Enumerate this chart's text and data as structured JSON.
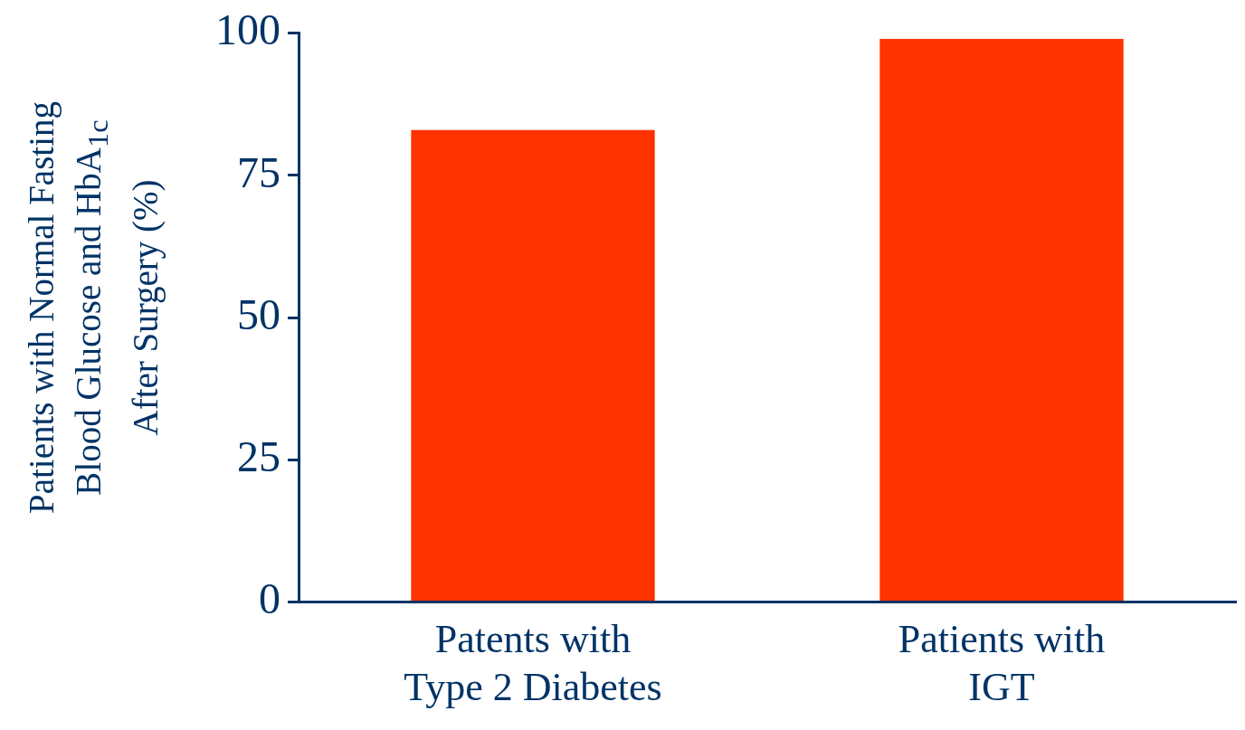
{
  "chart_data": {
    "type": "bar",
    "ylabel": "Patients with Normal Fasting\nBlood Glucose and HbA$_{1c}$\nAfter Surgery (%)",
    "categories": [
      "Patents with\nType 2 Diabetes",
      "Patients with\nIGT"
    ],
    "values": [
      83,
      99
    ],
    "color": "#ff3300",
    "ylim": [
      0,
      100
    ],
    "yticks": [
      0,
      25,
      50,
      75,
      100
    ],
    "grid": false
  }
}
